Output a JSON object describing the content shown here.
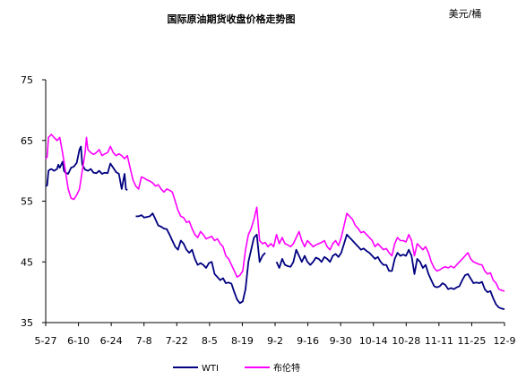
{
  "chart_data": {
    "type": "line",
    "title": "国际原油期货收盘价格走势图",
    "unit": "美元/桶",
    "xlabel": "",
    "ylabel": "",
    "ylim": [
      35,
      75
    ],
    "yticks": [
      35,
      45,
      55,
      65,
      75
    ],
    "xticks": [
      "5-27",
      "6-10",
      "6-24",
      "7-8",
      "7-22",
      "8-5",
      "8-19",
      "9-2",
      "9-16",
      "9-30",
      "10-14",
      "10-28",
      "11-11",
      "11-25",
      "12-9"
    ],
    "legend_position": "bottom",
    "grid": false,
    "series": [
      {
        "name": "WTI",
        "color": "#000080",
        "points": [
          [
            0,
            57.5
          ],
          [
            0.5,
            57.6
          ],
          [
            1,
            60
          ],
          [
            1.5,
            60.2
          ],
          [
            2,
            60.3
          ],
          [
            3,
            60
          ],
          [
            4,
            60.3
          ],
          [
            4.5,
            61
          ],
          [
            5,
            60.5
          ],
          [
            6,
            61.5
          ],
          [
            6.5,
            60
          ],
          [
            7,
            59.7
          ],
          [
            8,
            59.5
          ],
          [
            9,
            60.5
          ],
          [
            10,
            60.7
          ],
          [
            11,
            61.3
          ],
          [
            12,
            63.5
          ],
          [
            12.5,
            64
          ],
          [
            13,
            61
          ],
          [
            14,
            60.2
          ],
          [
            15,
            60
          ],
          [
            16,
            60.3
          ],
          [
            17,
            59.7
          ],
          [
            18,
            59.6
          ],
          [
            19,
            60
          ],
          [
            20,
            59.5
          ],
          [
            21,
            59.7
          ],
          [
            22,
            59.6
          ],
          [
            23,
            61.2
          ],
          [
            24,
            60.5
          ],
          [
            25,
            59.8
          ],
          [
            26,
            59.5
          ],
          [
            27,
            57
          ],
          [
            28,
            59.5
          ],
          [
            28.5,
            57
          ],
          [
            29,
            56.8
          ],
          [
            32,
            52.5
          ],
          [
            33,
            52.5
          ],
          [
            34,
            52.7
          ],
          [
            35,
            52.3
          ],
          [
            36,
            52.4
          ],
          [
            37,
            52.5
          ],
          [
            38,
            53
          ],
          [
            39,
            52
          ],
          [
            40,
            51
          ],
          [
            41,
            50.8
          ],
          [
            42,
            50.5
          ],
          [
            43,
            50.4
          ],
          [
            44,
            49.5
          ],
          [
            45,
            48.5
          ],
          [
            46,
            47.5
          ],
          [
            47,
            47
          ],
          [
            48,
            48.5
          ],
          [
            49,
            48
          ],
          [
            50,
            47
          ],
          [
            51,
            46.5
          ],
          [
            52,
            47
          ],
          [
            53,
            45.5
          ],
          [
            54,
            44.5
          ],
          [
            55,
            44.8
          ],
          [
            56,
            44.5
          ],
          [
            57,
            44
          ],
          [
            58,
            44.8
          ],
          [
            59,
            45
          ],
          [
            60,
            43
          ],
          [
            61,
            42.5
          ],
          [
            62,
            42
          ],
          [
            63,
            42.3
          ],
          [
            64,
            41.5
          ],
          [
            65,
            41.6
          ],
          [
            66,
            41.4
          ],
          [
            67,
            40
          ],
          [
            68,
            38.8
          ],
          [
            69,
            38.2
          ],
          [
            70,
            38.5
          ],
          [
            71,
            40.5
          ],
          [
            72,
            45
          ],
          [
            73,
            47
          ],
          [
            74,
            49
          ],
          [
            75,
            49.5
          ],
          [
            76,
            45
          ],
          [
            77,
            46
          ],
          [
            78,
            46.5
          ],
          [
            82,
            45
          ],
          [
            83,
            44
          ],
          [
            84,
            45.5
          ],
          [
            85,
            44.5
          ],
          [
            86,
            44.3
          ],
          [
            87,
            44.2
          ],
          [
            88,
            45
          ],
          [
            89,
            47
          ],
          [
            90,
            46
          ],
          [
            91,
            45
          ],
          [
            92,
            46
          ],
          [
            93,
            45
          ],
          [
            94,
            44.5
          ],
          [
            95,
            45
          ],
          [
            96,
            45.7
          ],
          [
            97,
            45.5
          ],
          [
            98,
            45
          ],
          [
            99,
            45.8
          ],
          [
            100,
            45.5
          ],
          [
            101,
            45
          ],
          [
            102,
            46
          ],
          [
            103,
            46.3
          ],
          [
            104,
            45.8
          ],
          [
            105,
            46.5
          ],
          [
            106,
            48
          ],
          [
            107,
            49.5
          ],
          [
            108,
            49
          ],
          [
            109,
            48.5
          ],
          [
            110,
            48
          ],
          [
            111,
            47.5
          ],
          [
            112,
            47
          ],
          [
            113,
            47.2
          ],
          [
            114,
            46.8
          ],
          [
            115,
            46.5
          ],
          [
            116,
            46
          ],
          [
            117,
            45.5
          ],
          [
            118,
            45.8
          ],
          [
            119,
            45
          ],
          [
            120,
            44.5
          ],
          [
            121,
            44.5
          ],
          [
            122,
            43.5
          ],
          [
            123,
            43.5
          ],
          [
            124,
            45.5
          ],
          [
            125,
            46.5
          ],
          [
            126,
            46
          ],
          [
            127,
            46.2
          ],
          [
            128,
            46
          ],
          [
            129,
            47
          ],
          [
            130,
            46
          ],
          [
            131,
            43
          ],
          [
            132,
            45.5
          ],
          [
            133,
            45
          ],
          [
            134,
            44
          ],
          [
            135,
            44.5
          ],
          [
            136,
            43
          ],
          [
            137,
            42
          ],
          [
            138,
            41
          ],
          [
            139,
            40.8
          ],
          [
            140,
            41
          ],
          [
            141,
            41.5
          ],
          [
            142,
            41.2
          ],
          [
            143,
            40.5
          ],
          [
            144,
            40.7
          ],
          [
            145,
            40.5
          ],
          [
            146,
            40.8
          ],
          [
            147,
            41
          ],
          [
            148,
            42
          ],
          [
            149,
            42.8
          ],
          [
            150,
            43
          ],
          [
            152,
            41.5
          ],
          [
            153,
            41.6
          ],
          [
            154,
            41.5
          ],
          [
            155,
            41.7
          ],
          [
            156,
            40.5
          ],
          [
            157,
            40
          ],
          [
            158,
            40.2
          ],
          [
            159,
            39
          ],
          [
            160,
            38
          ],
          [
            161,
            37.5
          ],
          [
            162,
            37.3
          ],
          [
            163,
            37.2
          ]
        ]
      },
      {
        "name": "布伦特",
        "color": "#ff00ff",
        "points": [
          [
            0,
            62
          ],
          [
            0.5,
            62.3
          ],
          [
            1,
            65.5
          ],
          [
            2,
            66
          ],
          [
            3,
            65.5
          ],
          [
            4,
            65
          ],
          [
            5,
            65.5
          ],
          [
            6,
            63
          ],
          [
            7,
            60
          ],
          [
            8,
            57
          ],
          [
            9,
            55.5
          ],
          [
            10,
            55.3
          ],
          [
            11,
            56
          ],
          [
            12,
            57
          ],
          [
            13,
            60
          ],
          [
            14,
            63
          ],
          [
            14.5,
            65.5
          ],
          [
            15,
            63.5
          ],
          [
            16,
            63
          ],
          [
            17,
            62.7
          ],
          [
            18,
            63
          ],
          [
            19,
            63.5
          ],
          [
            20,
            62.5
          ],
          [
            21,
            62.8
          ],
          [
            22,
            63
          ],
          [
            23,
            64
          ],
          [
            24,
            63
          ],
          [
            25,
            62.5
          ],
          [
            26,
            62.8
          ],
          [
            27,
            62.5
          ],
          [
            28,
            62
          ],
          [
            29,
            62.5
          ],
          [
            30,
            60.5
          ],
          [
            31,
            58.5
          ],
          [
            32,
            57.5
          ],
          [
            33,
            57
          ],
          [
            34,
            59
          ],
          [
            35,
            58.8
          ],
          [
            36,
            58.5
          ],
          [
            37,
            58.3
          ],
          [
            38,
            58
          ],
          [
            39,
            57.5
          ],
          [
            40,
            57.7
          ],
          [
            41,
            57
          ],
          [
            42,
            56.5
          ],
          [
            43,
            57
          ],
          [
            44,
            56.8
          ],
          [
            45,
            56.5
          ],
          [
            46,
            55
          ],
          [
            47,
            53.5
          ],
          [
            48,
            52.5
          ],
          [
            49,
            52.3
          ],
          [
            50,
            51.5
          ],
          [
            51,
            51.7
          ],
          [
            52,
            50.5
          ],
          [
            53,
            49.5
          ],
          [
            54,
            49
          ],
          [
            55,
            50
          ],
          [
            56,
            49.5
          ],
          [
            57,
            48.8
          ],
          [
            58,
            49
          ],
          [
            59,
            49.2
          ],
          [
            60,
            48.5
          ],
          [
            61,
            48.8
          ],
          [
            62,
            48
          ],
          [
            63,
            47.5
          ],
          [
            64,
            46
          ],
          [
            65,
            45.5
          ],
          [
            66,
            44.5
          ],
          [
            67,
            43.5
          ],
          [
            68,
            42.5
          ],
          [
            69,
            42.8
          ],
          [
            70,
            43.5
          ],
          [
            71,
            47
          ],
          [
            72,
            49.5
          ],
          [
            73,
            50.5
          ],
          [
            74,
            52
          ],
          [
            75,
            54
          ],
          [
            76,
            48.5
          ],
          [
            77,
            48
          ],
          [
            78,
            48.2
          ],
          [
            79,
            47.5
          ],
          [
            80,
            48
          ],
          [
            81,
            47.5
          ],
          [
            82,
            49.5
          ],
          [
            83,
            48
          ],
          [
            84,
            49
          ],
          [
            85,
            48
          ],
          [
            86,
            47.8
          ],
          [
            87,
            47.5
          ],
          [
            88,
            48
          ],
          [
            89,
            49
          ],
          [
            90,
            50
          ],
          [
            91,
            48.5
          ],
          [
            92,
            47.5
          ],
          [
            93,
            48.5
          ],
          [
            94,
            48
          ],
          [
            95,
            47.5
          ],
          [
            96,
            47.8
          ],
          [
            97,
            48
          ],
          [
            98,
            48.2
          ],
          [
            99,
            48.5
          ],
          [
            100,
            47.5
          ],
          [
            101,
            47
          ],
          [
            102,
            48
          ],
          [
            103,
            48.5
          ],
          [
            104,
            47.7
          ],
          [
            105,
            49
          ],
          [
            106,
            51
          ],
          [
            107,
            53
          ],
          [
            108,
            52.5
          ],
          [
            109,
            52
          ],
          [
            110,
            51
          ],
          [
            111,
            50.5
          ],
          [
            112,
            49.8
          ],
          [
            113,
            50
          ],
          [
            114,
            49.5
          ],
          [
            115,
            49
          ],
          [
            116,
            48.5
          ],
          [
            117,
            47.5
          ],
          [
            118,
            48
          ],
          [
            119,
            47.5
          ],
          [
            120,
            47
          ],
          [
            121,
            47.2
          ],
          [
            122,
            46.5
          ],
          [
            123,
            46
          ],
          [
            124,
            48
          ],
          [
            125,
            49
          ],
          [
            126,
            48.5
          ],
          [
            127,
            48.5
          ],
          [
            128,
            48.3
          ],
          [
            129,
            49.5
          ],
          [
            130,
            48.5
          ],
          [
            131,
            46
          ],
          [
            132,
            48
          ],
          [
            133,
            47.5
          ],
          [
            134,
            47
          ],
          [
            135,
            47.5
          ],
          [
            136,
            46.5
          ],
          [
            137,
            45
          ],
          [
            138,
            44
          ],
          [
            139,
            43.5
          ],
          [
            140,
            43.7
          ],
          [
            141,
            44
          ],
          [
            142,
            44.2
          ],
          [
            143,
            44
          ],
          [
            144,
            44.3
          ],
          [
            145,
            44
          ],
          [
            146,
            44.5
          ],
          [
            147,
            45
          ],
          [
            148,
            45.5
          ],
          [
            149,
            46
          ],
          [
            150,
            46.5
          ],
          [
            151,
            45.5
          ],
          [
            152,
            45
          ],
          [
            153,
            44.8
          ],
          [
            154,
            44.6
          ],
          [
            155,
            44.5
          ],
          [
            156,
            43.5
          ],
          [
            157,
            43
          ],
          [
            158,
            43.2
          ],
          [
            159,
            42
          ],
          [
            160,
            41.5
          ],
          [
            161,
            40.5
          ],
          [
            162,
            40.3
          ],
          [
            163,
            40.2
          ]
        ]
      }
    ]
  }
}
